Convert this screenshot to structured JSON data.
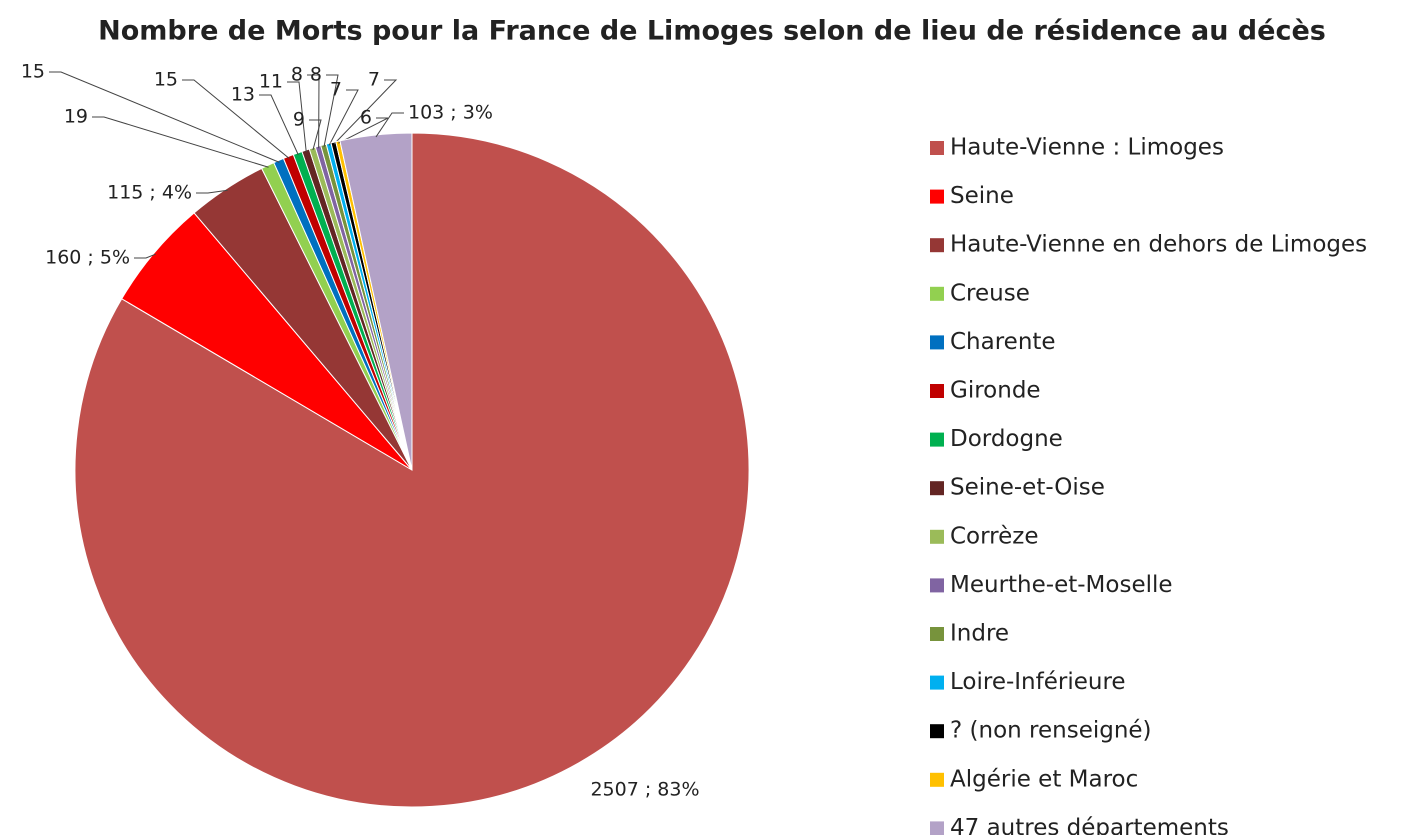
{
  "chart_data": {
    "type": "pie",
    "title": "Nombre de Morts pour la France de Limoges selon de lieu de résidence au décès",
    "categories": [
      "Haute-Vienne : Limoges",
      "Seine",
      "Haute-Vienne en dehors de Limoges",
      "Creuse",
      "Charente",
      "Gironde",
      "Dordogne",
      "Seine-et-Oise",
      "Corrèze",
      "Meurthe-et-Moselle",
      "Indre",
      "Loire-Inférieure",
      "? (non renseigné)",
      "Algérie et Maroc",
      "47 autres départements"
    ],
    "values": [
      2507,
      160,
      115,
      19,
      15,
      15,
      13,
      11,
      9,
      8,
      8,
      7,
      7,
      6,
      103
    ],
    "value_labels": [
      "2507 ; 83%",
      "160 ; 5%",
      "115 ; 4%",
      "19",
      "15",
      "15",
      "13",
      "11",
      "9",
      "8",
      "8",
      "7",
      "7",
      "6",
      "103 ; 3%"
    ],
    "colors": [
      "#c0504d",
      "#ff0000",
      "#953735",
      "#92d050",
      "#0070c0",
      "#c00000",
      "#00b050",
      "#632523",
      "#9bbb59",
      "#8064a2",
      "#77933c",
      "#00b0f0",
      "#000000",
      "#ffc000",
      "#b3a2c7"
    ],
    "legend": "right"
  }
}
